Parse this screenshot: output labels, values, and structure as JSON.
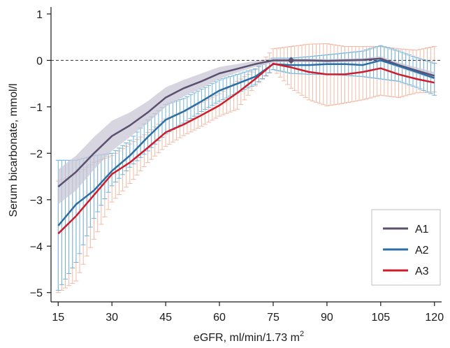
{
  "chart_data": {
    "type": "line",
    "xlabel": "eGFR, ml/min/1.73 m",
    "xlabel_superscript": "2",
    "ylabel": "Serum bicarbonate, mmol/l",
    "xlim": [
      13,
      122
    ],
    "ylim": [
      -5.2,
      1.15
    ],
    "x_ticks": [
      15,
      30,
      45,
      60,
      75,
      90,
      105,
      120
    ],
    "y_ticks": [
      1,
      0,
      -1,
      -2,
      -3,
      -4,
      -5
    ],
    "y_tick_labels": [
      "1",
      "0",
      "−1",
      "−2",
      "−3",
      "−4",
      "−5"
    ],
    "reference_line": {
      "y": 0,
      "style": "dashed"
    },
    "reference_point": {
      "x": 80,
      "y": 0
    },
    "legend_position": "bottom-right",
    "series": [
      {
        "name": "A1",
        "color": "#5b5070",
        "ci_style": "band",
        "ci_color": "#c9c7d6",
        "x": [
          15,
          20,
          25,
          30,
          35,
          40,
          45,
          50,
          55,
          60,
          65,
          70,
          75,
          80,
          85,
          90,
          95,
          100,
          105,
          110,
          115,
          120
        ],
        "y": [
          -2.72,
          -2.4,
          -2.0,
          -1.63,
          -1.4,
          -1.12,
          -0.8,
          -0.6,
          -0.45,
          -0.28,
          -0.18,
          -0.08,
          0.0,
          0.0,
          0.0,
          -0.01,
          0.0,
          0.01,
          0.04,
          -0.1,
          -0.22,
          -0.33
        ],
        "ci_lower": [
          -3.1,
          -2.8,
          -2.35,
          -1.95,
          -1.65,
          -1.35,
          -1.0,
          -0.78,
          -0.6,
          -0.4,
          -0.26,
          -0.14,
          -0.05,
          -0.04,
          -0.04,
          -0.05,
          -0.04,
          -0.03,
          -0.01,
          -0.16,
          -0.29,
          -0.41
        ],
        "ci_upper": [
          -2.35,
          -2.05,
          -1.65,
          -1.3,
          -1.12,
          -0.88,
          -0.58,
          -0.42,
          -0.28,
          -0.14,
          -0.08,
          -0.01,
          0.05,
          0.04,
          0.04,
          0.03,
          0.04,
          0.05,
          0.09,
          -0.04,
          -0.15,
          -0.25
        ]
      },
      {
        "name": "A2",
        "color": "#2a6ea4",
        "ci_style": "errorbars",
        "ci_color": "#6fb3dd",
        "x": [
          15,
          20,
          25,
          30,
          35,
          40,
          45,
          50,
          55,
          60,
          65,
          70,
          75,
          80,
          85,
          90,
          95,
          100,
          105,
          110,
          115,
          120
        ],
        "y": [
          -3.56,
          -3.1,
          -2.8,
          -2.38,
          -2.05,
          -1.65,
          -1.28,
          -1.1,
          -0.88,
          -0.65,
          -0.5,
          -0.35,
          -0.08,
          -0.1,
          -0.1,
          -0.08,
          -0.08,
          -0.1,
          0.0,
          -0.12,
          -0.25,
          -0.38
        ],
        "ci_lower": [
          -4.95,
          -4.35,
          -3.4,
          -2.7,
          -2.3,
          -1.95,
          -1.58,
          -1.35,
          -1.1,
          -0.88,
          -0.7,
          -0.52,
          -0.2,
          -0.28,
          -0.3,
          -0.3,
          -0.32,
          -0.35,
          -0.4,
          -0.45,
          -0.58,
          -0.75
        ],
        "ci_upper": [
          -2.15,
          -2.15,
          -2.05,
          -2.0,
          -1.72,
          -1.28,
          -0.95,
          -0.82,
          -0.62,
          -0.42,
          -0.3,
          -0.18,
          0.05,
          0.05,
          0.08,
          0.12,
          0.16,
          0.2,
          0.32,
          0.2,
          0.06,
          -0.06
        ]
      },
      {
        "name": "A3",
        "color": "#d01c2a",
        "ci_style": "errorbars",
        "ci_color": "#f2b9a4",
        "x": [
          15,
          20,
          25,
          30,
          35,
          40,
          45,
          50,
          55,
          60,
          65,
          70,
          75,
          80,
          85,
          90,
          95,
          100,
          105,
          110,
          115,
          120
        ],
        "y": [
          -3.73,
          -3.35,
          -2.9,
          -2.45,
          -2.2,
          -1.88,
          -1.55,
          -1.38,
          -1.18,
          -0.97,
          -0.7,
          -0.4,
          -0.07,
          -0.15,
          -0.25,
          -0.3,
          -0.3,
          -0.25,
          -0.17,
          -0.3,
          -0.4,
          -0.48
        ],
        "ci_lower": [
          -5.0,
          -4.75,
          -3.85,
          -3.05,
          -2.65,
          -2.2,
          -1.85,
          -1.62,
          -1.42,
          -1.2,
          -1.05,
          -0.55,
          -0.2,
          -0.6,
          -0.85,
          -0.98,
          -0.92,
          -0.85,
          -0.75,
          -0.8,
          -0.7,
          -0.68
        ],
        "ci_upper": [
          -2.6,
          -2.45,
          -2.2,
          -2.05,
          -1.8,
          -1.55,
          -1.26,
          -1.1,
          -0.9,
          -0.72,
          -0.45,
          -0.2,
          0.25,
          0.3,
          0.35,
          0.36,
          0.3,
          0.3,
          0.3,
          0.25,
          0.22,
          0.3
        ]
      }
    ]
  }
}
